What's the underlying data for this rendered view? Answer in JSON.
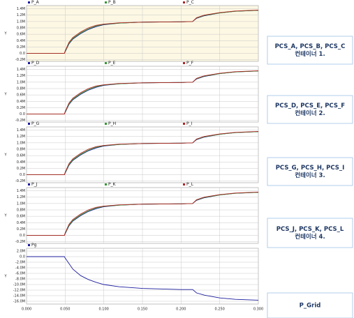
{
  "chart_data": [
    {
      "type": "line",
      "y_label": "Y",
      "background": "#fdf8e4",
      "grid": true,
      "x": [
        0,
        0.049,
        0.05,
        0.055,
        0.06,
        0.07,
        0.08,
        0.09,
        0.1,
        0.12,
        0.15,
        0.2,
        0.215,
        0.22,
        0.23,
        0.25,
        0.27,
        0.3
      ],
      "xlim": [
        0,
        0.3
      ],
      "ylim": [
        -0.25,
        1.5
      ],
      "yticks": [
        {
          "value": 1.4,
          "label": "1.4M"
        },
        {
          "value": 1.2,
          "label": "1.2M"
        },
        {
          "value": 1.0,
          "label": "1.0M"
        },
        {
          "value": 0.8,
          "label": "0.8M"
        },
        {
          "value": 0.6,
          "label": "0.6M"
        },
        {
          "value": 0.4,
          "label": "0.4M"
        },
        {
          "value": 0.2,
          "label": "0.2M"
        },
        {
          "value": 0,
          "label": "0.0"
        },
        {
          "value": -0.2,
          "label": "-0.2M"
        }
      ],
      "series": [
        {
          "name": "P_A",
          "color": "#1c1c9e",
          "values": [
            0,
            0,
            0.05,
            0.3,
            0.45,
            0.62,
            0.75,
            0.84,
            0.9,
            0.95,
            0.98,
            0.99,
            1.0,
            1.1,
            1.18,
            1.27,
            1.32,
            1.35
          ]
        },
        {
          "name": "P_B",
          "color": "#2e9a2e",
          "values": [
            0,
            0,
            0.06,
            0.32,
            0.47,
            0.64,
            0.77,
            0.86,
            0.91,
            0.95,
            0.98,
            0.99,
            1.0,
            1.11,
            1.19,
            1.27,
            1.32,
            1.35
          ]
        },
        {
          "name": "P_C",
          "color": "#b22222",
          "values": [
            0,
            0,
            0.08,
            0.35,
            0.5,
            0.67,
            0.8,
            0.88,
            0.92,
            0.96,
            0.98,
            0.99,
            1.0,
            1.12,
            1.2,
            1.28,
            1.33,
            1.36
          ]
        }
      ]
    },
    {
      "type": "line",
      "y_label": "Y",
      "background": "#ffffff",
      "grid": true,
      "x": [
        0,
        0.049,
        0.05,
        0.055,
        0.06,
        0.07,
        0.08,
        0.09,
        0.1,
        0.12,
        0.15,
        0.2,
        0.215,
        0.22,
        0.23,
        0.25,
        0.27,
        0.3
      ],
      "xlim": [
        0,
        0.3
      ],
      "ylim": [
        -0.25,
        1.5
      ],
      "yticks": [
        {
          "value": 1.4,
          "label": "1.4M"
        },
        {
          "value": 1.2,
          "label": "1.2M"
        },
        {
          "value": 1.0,
          "label": "1.0M"
        },
        {
          "value": 0.8,
          "label": "0.8M"
        },
        {
          "value": 0.6,
          "label": "0.6M"
        },
        {
          "value": 0.4,
          "label": "0.4M"
        },
        {
          "value": 0.2,
          "label": "0.2M"
        },
        {
          "value": 0,
          "label": "0.0"
        },
        {
          "value": -0.2,
          "label": "-0.2M"
        }
      ],
      "series": [
        {
          "name": "P_D",
          "color": "#1c1c9e",
          "values": [
            0,
            0,
            0.05,
            0.3,
            0.45,
            0.62,
            0.75,
            0.84,
            0.9,
            0.95,
            0.98,
            0.99,
            1.0,
            1.1,
            1.18,
            1.27,
            1.32,
            1.35
          ]
        },
        {
          "name": "P_E",
          "color": "#2e9a2e",
          "values": [
            0,
            0,
            0.06,
            0.32,
            0.47,
            0.64,
            0.77,
            0.86,
            0.91,
            0.95,
            0.98,
            0.99,
            1.0,
            1.11,
            1.19,
            1.27,
            1.32,
            1.35
          ]
        },
        {
          "name": "P_F",
          "color": "#b22222",
          "values": [
            0,
            0,
            0.08,
            0.35,
            0.5,
            0.67,
            0.8,
            0.88,
            0.92,
            0.96,
            0.98,
            0.99,
            1.0,
            1.12,
            1.2,
            1.28,
            1.33,
            1.36
          ]
        }
      ]
    },
    {
      "type": "line",
      "y_label": "Y",
      "background": "#ffffff",
      "grid": true,
      "x": [
        0,
        0.049,
        0.05,
        0.055,
        0.06,
        0.07,
        0.08,
        0.09,
        0.1,
        0.12,
        0.15,
        0.2,
        0.215,
        0.22,
        0.23,
        0.25,
        0.27,
        0.3
      ],
      "xlim": [
        0,
        0.3
      ],
      "ylim": [
        -0.25,
        1.5
      ],
      "yticks": [
        {
          "value": 1.4,
          "label": "1.4M"
        },
        {
          "value": 1.2,
          "label": "1.2M"
        },
        {
          "value": 1.0,
          "label": "1.0M"
        },
        {
          "value": 0.8,
          "label": "0.8M"
        },
        {
          "value": 0.6,
          "label": "0.6M"
        },
        {
          "value": 0.4,
          "label": "0.4M"
        },
        {
          "value": 0.2,
          "label": "0.2M"
        },
        {
          "value": 0,
          "label": "0.0"
        },
        {
          "value": -0.2,
          "label": "-0.2M"
        }
      ],
      "series": [
        {
          "name": "P_G",
          "color": "#1c1c9e",
          "values": [
            0,
            0,
            0.05,
            0.3,
            0.45,
            0.62,
            0.75,
            0.84,
            0.9,
            0.95,
            0.98,
            0.99,
            1.0,
            1.1,
            1.18,
            1.27,
            1.32,
            1.35
          ]
        },
        {
          "name": "P_H",
          "color": "#2e9a2e",
          "values": [
            0,
            0,
            0.06,
            0.32,
            0.47,
            0.64,
            0.77,
            0.86,
            0.91,
            0.95,
            0.98,
            0.99,
            1.0,
            1.11,
            1.19,
            1.27,
            1.32,
            1.35
          ]
        },
        {
          "name": "P_I",
          "color": "#b22222",
          "values": [
            0,
            0,
            0.08,
            0.35,
            0.5,
            0.67,
            0.8,
            0.88,
            0.92,
            0.96,
            0.98,
            0.99,
            1.0,
            1.12,
            1.2,
            1.28,
            1.33,
            1.36
          ]
        }
      ]
    },
    {
      "type": "line",
      "y_label": "Y",
      "background": "#ffffff",
      "grid": true,
      "x": [
        0,
        0.049,
        0.05,
        0.055,
        0.06,
        0.07,
        0.08,
        0.09,
        0.1,
        0.12,
        0.15,
        0.2,
        0.215,
        0.22,
        0.23,
        0.25,
        0.27,
        0.3
      ],
      "xlim": [
        0,
        0.3
      ],
      "ylim": [
        -0.25,
        1.5
      ],
      "yticks": [
        {
          "value": 1.4,
          "label": "1.4M"
        },
        {
          "value": 1.2,
          "label": "1.2M"
        },
        {
          "value": 1.0,
          "label": "1.0M"
        },
        {
          "value": 0.8,
          "label": "0.8M"
        },
        {
          "value": 0.6,
          "label": "0.6M"
        },
        {
          "value": 0.4,
          "label": "0.4M"
        },
        {
          "value": 0.2,
          "label": "0.2M"
        },
        {
          "value": 0,
          "label": "0.0"
        },
        {
          "value": -0.2,
          "label": "-0.2M"
        }
      ],
      "series": [
        {
          "name": "P_J",
          "color": "#1c1c9e",
          "values": [
            0,
            0,
            0.05,
            0.3,
            0.45,
            0.62,
            0.75,
            0.84,
            0.9,
            0.95,
            0.98,
            0.99,
            1.0,
            1.1,
            1.18,
            1.27,
            1.32,
            1.35
          ]
        },
        {
          "name": "P_K",
          "color": "#2e9a2e",
          "values": [
            0,
            0,
            0.06,
            0.32,
            0.47,
            0.64,
            0.77,
            0.86,
            0.91,
            0.95,
            0.98,
            0.99,
            1.0,
            1.11,
            1.19,
            1.27,
            1.32,
            1.35
          ]
        },
        {
          "name": "P_L",
          "color": "#b22222",
          "values": [
            0,
            0,
            0.08,
            0.35,
            0.5,
            0.67,
            0.8,
            0.88,
            0.92,
            0.96,
            0.98,
            0.99,
            1.0,
            1.12,
            1.2,
            1.28,
            1.33,
            1.36
          ]
        }
      ]
    },
    {
      "type": "line",
      "y_label": "Y",
      "background": "#ffffff",
      "grid": true,
      "x": [
        0,
        0.049,
        0.05,
        0.055,
        0.06,
        0.07,
        0.08,
        0.09,
        0.1,
        0.12,
        0.15,
        0.2,
        0.215,
        0.22,
        0.23,
        0.25,
        0.27,
        0.3
      ],
      "xlim": [
        0,
        0.3
      ],
      "ylim": [
        -17,
        3
      ],
      "xticks": [
        {
          "value": 0,
          "label": "0.000"
        },
        {
          "value": 0.05,
          "label": "0.050"
        },
        {
          "value": 0.1,
          "label": "0.100"
        },
        {
          "value": 0.15,
          "label": "0.150"
        },
        {
          "value": 0.2,
          "label": "0.200"
        },
        {
          "value": 0.25,
          "label": "0.250"
        },
        {
          "value": 0.3,
          "label": "0.300"
        }
      ],
      "yticks": [
        {
          "value": 2,
          "label": "2.0M"
        },
        {
          "value": 0,
          "label": "0.0"
        },
        {
          "value": -2,
          "label": "-2.0M"
        },
        {
          "value": -4,
          "label": "-4.0M"
        },
        {
          "value": -6,
          "label": "-6.0M"
        },
        {
          "value": -8,
          "label": "-8.0M"
        },
        {
          "value": -10,
          "label": "-10.0M"
        },
        {
          "value": -12,
          "label": "-12.0M"
        },
        {
          "value": -14,
          "label": "-14.0M"
        },
        {
          "value": -16,
          "label": "-16.0M"
        }
      ],
      "series": [
        {
          "name": "Pg",
          "color": "#1c1c9e",
          "values": [
            0,
            0,
            -0.5,
            -2.5,
            -4.5,
            -6.8,
            -8.2,
            -9.2,
            -10.0,
            -10.8,
            -11.4,
            -11.8,
            -11.8,
            -13.0,
            -13.8,
            -14.8,
            -15.3,
            -15.6
          ]
        }
      ]
    }
  ],
  "side_labels": [
    [
      "PCS_A, PCS_B, PCS_C",
      "컨테이너 1."
    ],
    [
      "PCS_D, PCS_E, PCS_F",
      "컨테이너 2."
    ],
    [
      "PCS_G, PCS_H, PCS_I",
      "컨테이너 3."
    ],
    [
      "PCS_J, PCS_K, PCS_L",
      "컨테이너 4."
    ],
    [
      "P_Grid"
    ]
  ]
}
